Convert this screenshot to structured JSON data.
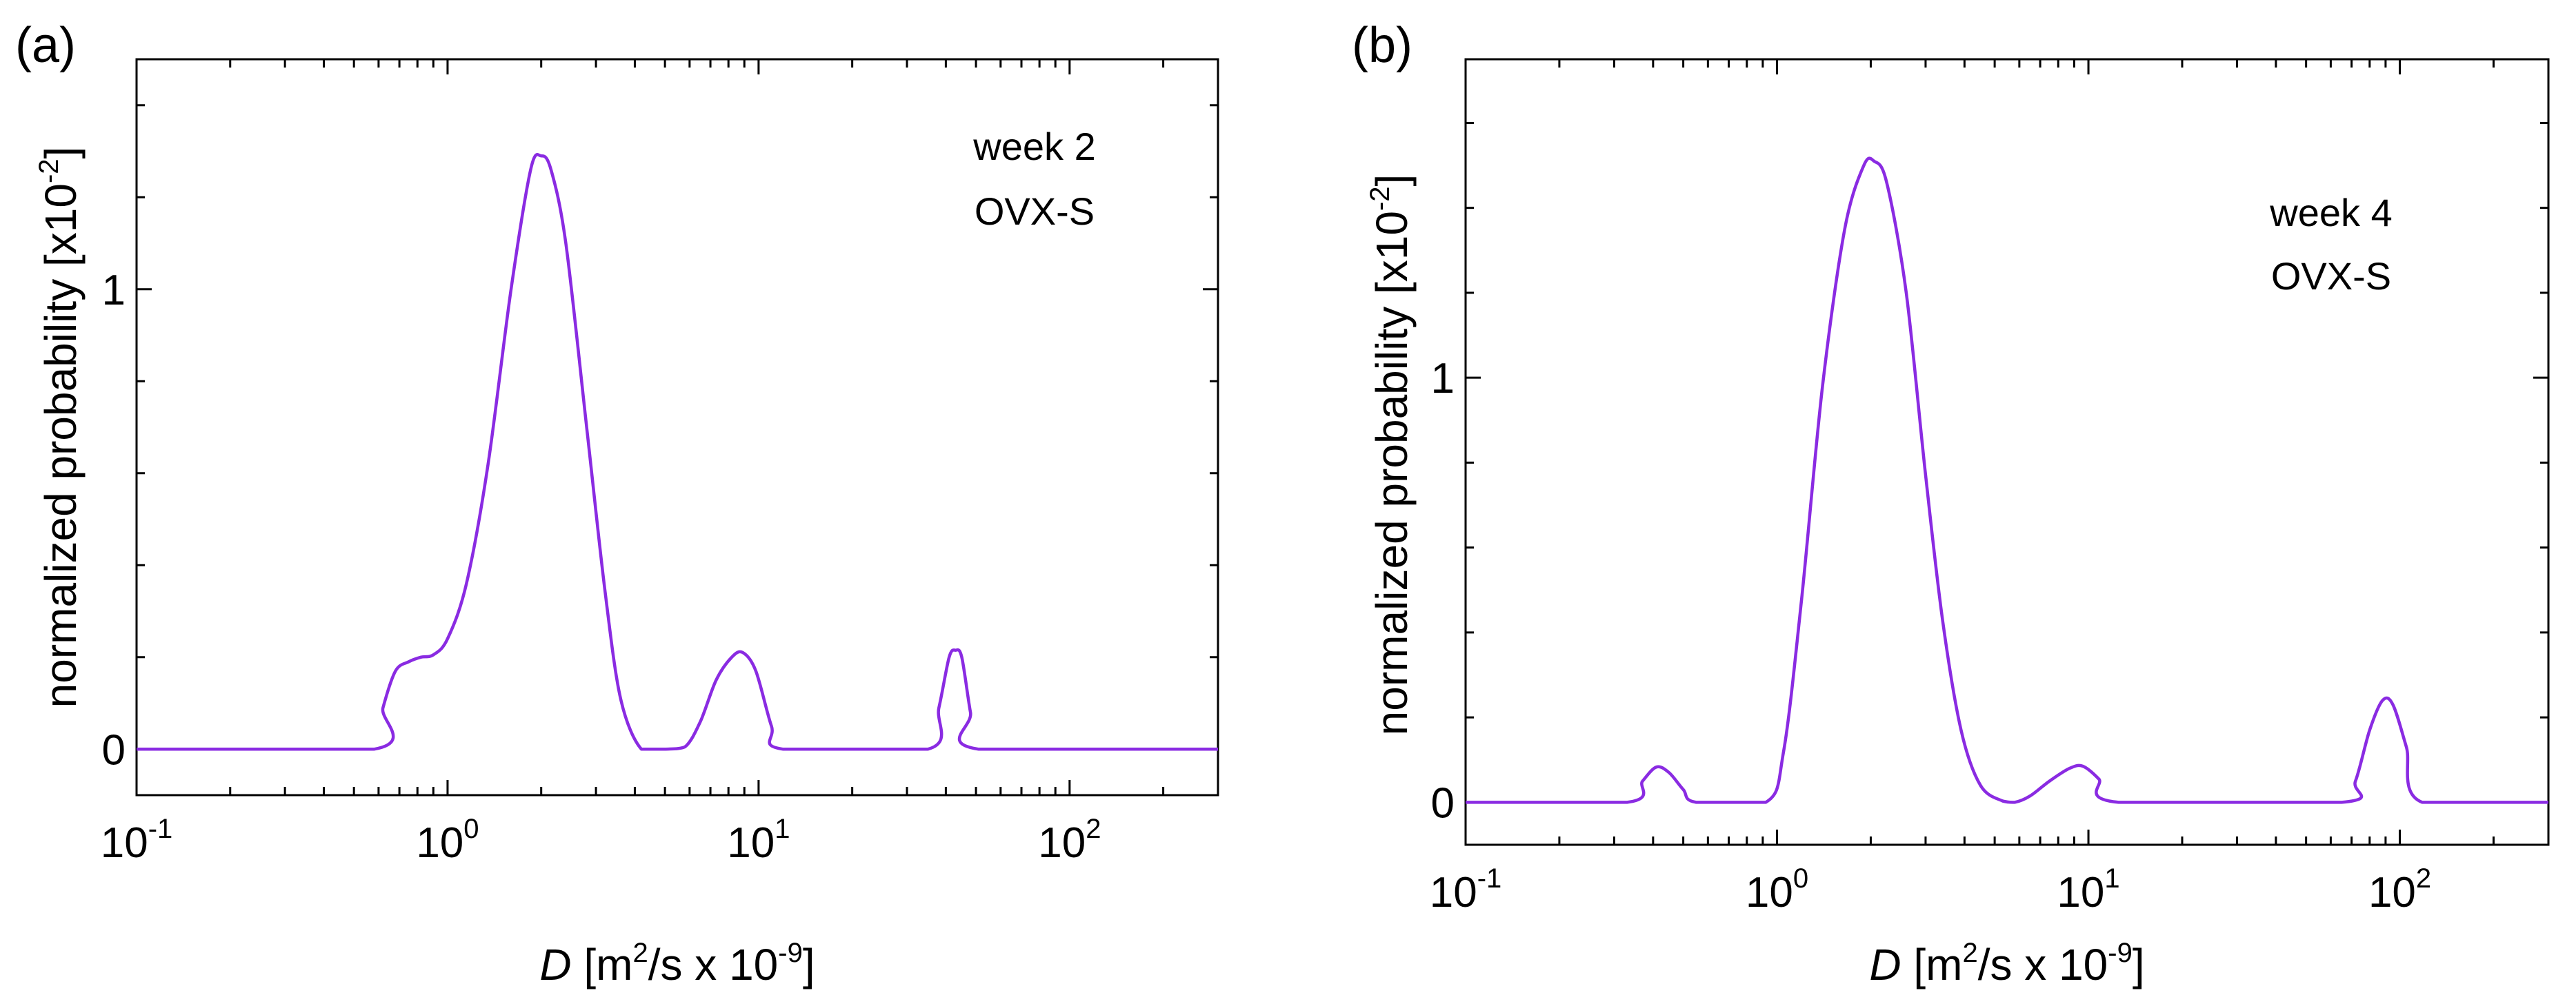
{
  "chart_data": [
    {
      "panel_label": "(a)",
      "type": "line",
      "x_scale": "log",
      "xlim": [
        0.1,
        300
      ],
      "ylim": [
        -0.1,
        1.5
      ],
      "x_ticks": [
        {
          "base": "10",
          "exp": "-1",
          "value": 0.1
        },
        {
          "base": "10",
          "exp": "0",
          "value": 1
        },
        {
          "base": "10",
          "exp": "1",
          "value": 10
        },
        {
          "base": "10",
          "exp": "2",
          "value": 100
        }
      ],
      "y_ticks": [
        {
          "label": "0",
          "value": 0
        },
        {
          "label": "1",
          "value": 1
        }
      ],
      "y_minor_step": 0.2,
      "xlabel": {
        "var": "D",
        "pre": " [m",
        "sup1": "2",
        "mid": "/s x 10",
        "sup2": "-9",
        "post": "]"
      },
      "ylabel": {
        "text": "normalized probability [x10",
        "sup": "-2",
        "post": "]"
      },
      "annotation": [
        "week 2",
        "OVX-S"
      ],
      "series": [
        {
          "name": "week 2 OVX-S",
          "color": "#8a2be2",
          "x": [
            0.1,
            0.58,
            0.62,
            0.68,
            0.75,
            0.82,
            0.9,
            1.0,
            1.15,
            1.35,
            1.6,
            1.85,
            2.0,
            2.15,
            2.4,
            2.8,
            3.2,
            3.6,
            4.2,
            5.0,
            5.8,
            6.5,
            7.3,
            8.2,
            8.9,
            9.8,
            11.0,
            12.0,
            35.0,
            38.0,
            41.0,
            43.0,
            45.0,
            48.0,
            51.0,
            300
          ],
          "y": [
            0,
            0,
            0.09,
            0.17,
            0.19,
            0.2,
            0.205,
            0.24,
            0.36,
            0.62,
            1.0,
            1.26,
            1.29,
            1.26,
            1.1,
            0.7,
            0.35,
            0.11,
            0,
            0,
            0.005,
            0.06,
            0.15,
            0.2,
            0.21,
            0.17,
            0.05,
            0,
            0,
            0.09,
            0.2,
            0.215,
            0.2,
            0.08,
            0,
            0
          ]
        }
      ]
    },
    {
      "panel_label": "(b)",
      "type": "line",
      "x_scale": "log",
      "xlim": [
        0.1,
        300
      ],
      "ylim": [
        -0.1,
        1.75
      ],
      "x_ticks": [
        {
          "base": "10",
          "exp": "-1",
          "value": 0.1
        },
        {
          "base": "10",
          "exp": "0",
          "value": 1
        },
        {
          "base": "10",
          "exp": "1",
          "value": 10
        },
        {
          "base": "10",
          "exp": "2",
          "value": 100
        }
      ],
      "y_ticks": [
        {
          "label": "0",
          "value": 0
        },
        {
          "label": "1",
          "value": 1
        }
      ],
      "y_minor_step": 0.2,
      "xlabel": {
        "var": "D",
        "pre": " [m",
        "sup1": "2",
        "mid": "/s x 10",
        "sup2": "-9",
        "post": "]"
      },
      "ylabel": {
        "text": "normalized probability [x10",
        "sup": "-2",
        "post": "]"
      },
      "annotation": [
        "week 4",
        "OVX-S"
      ],
      "series": [
        {
          "name": "week 4 OVX-S",
          "color": "#8a2be2",
          "x": [
            0.1,
            0.33,
            0.37,
            0.41,
            0.45,
            0.5,
            0.55,
            0.92,
            1.05,
            1.2,
            1.4,
            1.65,
            1.9,
            2.05,
            2.25,
            2.6,
            3.0,
            3.4,
            3.9,
            4.5,
            5.3,
            5.8,
            6.5,
            7.5,
            8.7,
            9.6,
            10.8,
            12.5,
            65.0,
            72.0,
            80.0,
            88.0,
            95.0,
            105.0,
            118.0,
            300
          ],
          "y": [
            0,
            0,
            0.05,
            0.083,
            0.07,
            0.03,
            0,
            0,
            0.12,
            0.48,
            0.98,
            1.35,
            1.5,
            1.51,
            1.46,
            1.2,
            0.77,
            0.43,
            0.17,
            0.04,
            0.003,
            0,
            0.015,
            0.05,
            0.08,
            0.085,
            0.055,
            0,
            0,
            0.05,
            0.17,
            0.24,
            0.23,
            0.13,
            0,
            0
          ]
        }
      ]
    }
  ]
}
